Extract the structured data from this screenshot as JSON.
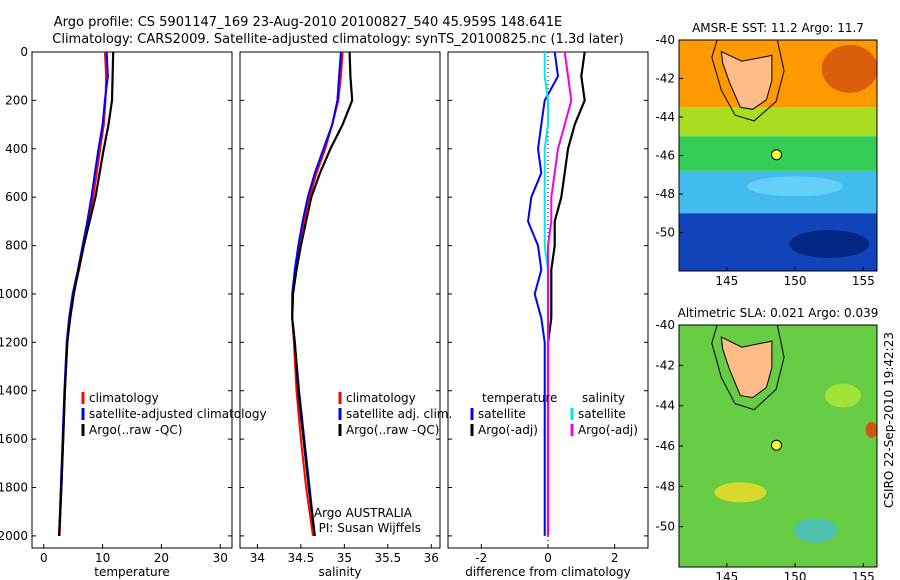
{
  "header": {
    "line1": "Argo profile: CS 5901147_169 23-Aug-2010 20100827_540 45.959S 148.641E",
    "line2": "Climatology: CARS2009. Satellite-adjusted climatology: synTS_20100825.nc (1.3d later)"
  },
  "side_stamp": "CSIRO 22-Sep-2010 19:42:23",
  "colors": {
    "climatology": "#ff0000",
    "satellite": "#0000ff",
    "argo": "#000000",
    "sal_satellite": "#00e5ee",
    "sal_argo": "#ee00ee",
    "land": "#ffbb88",
    "argo_marker": "#ffff33"
  },
  "chart_data": [
    {
      "type": "line",
      "xlabel": "temperature",
      "ylim": [
        2050,
        0
      ],
      "xlim": [
        -2,
        32
      ],
      "xticks": [
        0,
        10,
        20,
        30
      ],
      "xtick_labels": [
        "0",
        "10",
        "20",
        "30"
      ],
      "yticks": [
        0,
        200,
        400,
        600,
        800,
        1000,
        1200,
        1400,
        1600,
        1800,
        2000
      ],
      "ytick_labels": [
        "0",
        "200",
        "400",
        "600",
        "800",
        "1000",
        "1200",
        "1400",
        "1600",
        "1800",
        "2000"
      ],
      "legend": {
        "position": "lower-right",
        "entries": [
          "climatology",
          "satellite-adjusted climatology",
          "Argo(..raw -QC)"
        ]
      },
      "series": [
        {
          "name": "climatology",
          "color": "#ff0000",
          "points": [
            [
              10.4,
              0
            ],
            [
              10.6,
              100
            ],
            [
              10.5,
              200
            ],
            [
              10.2,
              300
            ],
            [
              9.6,
              400
            ],
            [
              9.0,
              500
            ],
            [
              8.4,
              600
            ],
            [
              7.6,
              700
            ],
            [
              6.8,
              800
            ],
            [
              6.0,
              900
            ],
            [
              5.0,
              1000
            ],
            [
              4.4,
              1100
            ],
            [
              4.0,
              1200
            ],
            [
              3.6,
              1400
            ],
            [
              3.3,
              1600
            ],
            [
              3.0,
              1800
            ],
            [
              2.7,
              2000
            ]
          ]
        },
        {
          "name": "satellite-adjusted climatology",
          "color": "#0000ff",
          "points": [
            [
              10.7,
              0
            ],
            [
              10.9,
              100
            ],
            [
              10.4,
              200
            ],
            [
              10.0,
              300
            ],
            [
              9.3,
              400
            ],
            [
              8.7,
              500
            ],
            [
              8.1,
              600
            ],
            [
              7.4,
              700
            ],
            [
              6.6,
              800
            ],
            [
              5.8,
              900
            ],
            [
              4.9,
              1000
            ],
            [
              4.3,
              1100
            ],
            [
              3.9,
              1200
            ],
            [
              3.5,
              1400
            ],
            [
              3.2,
              1600
            ],
            [
              2.9,
              1800
            ],
            [
              2.6,
              2000
            ]
          ]
        },
        {
          "name": "Argo(..raw -QC)",
          "color": "#000000",
          "points": [
            [
              11.8,
              0
            ],
            [
              11.7,
              100
            ],
            [
              11.6,
              200
            ],
            [
              11.0,
              300
            ],
            [
              10.2,
              400
            ],
            [
              9.5,
              500
            ],
            [
              8.8,
              600
            ],
            [
              7.8,
              700
            ],
            [
              6.8,
              800
            ],
            [
              5.9,
              900
            ],
            [
              5.1,
              1000
            ],
            [
              4.5,
              1100
            ],
            [
              4.0,
              1200
            ],
            [
              3.6,
              1400
            ],
            [
              3.3,
              1600
            ],
            [
              3.0,
              1800
            ],
            [
              2.6,
              2000
            ]
          ]
        }
      ]
    },
    {
      "type": "line",
      "xlabel": "salinity",
      "ylim": [
        2050,
        0
      ],
      "xlim": [
        33.8,
        36.1
      ],
      "xticks": [
        34,
        34.5,
        35,
        35.5,
        36
      ],
      "xtick_labels": [
        "34",
        "34.5",
        "35",
        "35.5",
        "36"
      ],
      "legend": {
        "position": "lower-right",
        "entries": [
          "climatology",
          "satellite adj. clim.",
          "Argo(..raw -QC)"
        ]
      },
      "annotation": [
        "Argo AUSTRALIA",
        "PI: Susan Wijffels"
      ],
      "series": [
        {
          "name": "climatology",
          "color": "#ff0000",
          "points": [
            [
              34.98,
              0
            ],
            [
              34.96,
              100
            ],
            [
              34.93,
              200
            ],
            [
              34.86,
              300
            ],
            [
              34.78,
              400
            ],
            [
              34.68,
              500
            ],
            [
              34.6,
              600
            ],
            [
              34.54,
              700
            ],
            [
              34.49,
              800
            ],
            [
              34.44,
              900
            ],
            [
              34.41,
              1000
            ],
            [
              34.4,
              1100
            ],
            [
              34.42,
              1200
            ],
            [
              34.45,
              1400
            ],
            [
              34.5,
              1600
            ],
            [
              34.56,
              1800
            ],
            [
              34.64,
              2000
            ]
          ]
        },
        {
          "name": "satellite adj. clim.",
          "color": "#0000ff",
          "points": [
            [
              34.96,
              0
            ],
            [
              34.94,
              100
            ],
            [
              34.92,
              200
            ],
            [
              34.86,
              300
            ],
            [
              34.76,
              400
            ],
            [
              34.66,
              500
            ],
            [
              34.58,
              600
            ],
            [
              34.52,
              700
            ],
            [
              34.47,
              800
            ],
            [
              34.43,
              900
            ],
            [
              34.4,
              1000
            ],
            [
              34.4,
              1100
            ],
            [
              34.43,
              1200
            ],
            [
              34.48,
              1400
            ],
            [
              34.54,
              1600
            ],
            [
              34.6,
              1800
            ],
            [
              34.66,
              2000
            ]
          ]
        },
        {
          "name": "Argo(..raw -QC)",
          "color": "#000000",
          "points": [
            [
              35.06,
              0
            ],
            [
              35.07,
              100
            ],
            [
              35.09,
              200
            ],
            [
              34.98,
              300
            ],
            [
              34.84,
              400
            ],
            [
              34.72,
              500
            ],
            [
              34.62,
              600
            ],
            [
              34.56,
              700
            ],
            [
              34.5,
              800
            ],
            [
              34.45,
              900
            ],
            [
              34.41,
              1000
            ],
            [
              34.4,
              1100
            ],
            [
              34.43,
              1200
            ],
            [
              34.47,
              1400
            ],
            [
              34.53,
              1600
            ],
            [
              34.59,
              1800
            ],
            [
              34.66,
              2000
            ]
          ]
        }
      ]
    },
    {
      "type": "line",
      "xlabel": "difference from climatology",
      "ylim": [
        2050,
        0
      ],
      "xlim": [
        -3,
        3
      ],
      "xticks": [
        -2,
        0,
        2
      ],
      "xtick_labels": [
        "-2",
        "0",
        "2"
      ],
      "zero_line": true,
      "legend_groups": [
        {
          "title": "temperature",
          "entries": [
            "satellite",
            "Argo(-adj)"
          ]
        },
        {
          "title": "salinity",
          "entries": [
            "satellite",
            "Argo(-adj)"
          ]
        }
      ],
      "series": [
        {
          "name": "satellite",
          "group": "temperature",
          "color": "#0000ff",
          "points": [
            [
              0.2,
              0
            ],
            [
              0.3,
              100
            ],
            [
              -0.1,
              200
            ],
            [
              -0.2,
              300
            ],
            [
              -0.3,
              400
            ],
            [
              -0.2,
              500
            ],
            [
              -0.5,
              600
            ],
            [
              -0.6,
              700
            ],
            [
              -0.3,
              800
            ],
            [
              -0.2,
              900
            ],
            [
              -0.4,
              1000
            ],
            [
              -0.2,
              1100
            ],
            [
              -0.1,
              1200
            ],
            [
              -0.1,
              1400
            ],
            [
              -0.1,
              1600
            ],
            [
              -0.1,
              1800
            ],
            [
              -0.1,
              2000
            ]
          ]
        },
        {
          "name": "Argo(-adj)",
          "group": "temperature",
          "color": "#000000",
          "points": [
            [
              1.1,
              0
            ],
            [
              1.0,
              100
            ],
            [
              1.1,
              200
            ],
            [
              0.8,
              300
            ],
            [
              0.6,
              400
            ],
            [
              0.5,
              500
            ],
            [
              0.4,
              600
            ],
            [
              0.2,
              700
            ],
            [
              0.2,
              800
            ],
            [
              0.1,
              900
            ],
            [
              0.1,
              1000
            ],
            [
              0.1,
              1100
            ],
            [
              0.0,
              1200
            ],
            [
              0.0,
              1400
            ],
            [
              0.0,
              1600
            ],
            [
              0.0,
              1800
            ],
            [
              0.0,
              2000
            ]
          ]
        },
        {
          "name": "satellite",
          "group": "salinity",
          "color": "#00e5ee",
          "points": [
            [
              -0.1,
              0
            ],
            [
              -0.1,
              100
            ],
            [
              0.0,
              200
            ],
            [
              0.0,
              300
            ],
            [
              -0.1,
              400
            ],
            [
              -0.1,
              500
            ],
            [
              -0.1,
              600
            ],
            [
              -0.1,
              700
            ],
            [
              -0.1,
              800
            ],
            [
              0.0,
              900
            ],
            [
              0.0,
              1000
            ],
            [
              0.0,
              1100
            ],
            [
              0.0,
              1200
            ],
            [
              0.0,
              1400
            ],
            [
              0.0,
              1600
            ],
            [
              0.0,
              1800
            ],
            [
              0.0,
              2000
            ]
          ]
        },
        {
          "name": "Argo(-adj)",
          "group": "salinity",
          "color": "#ee00ee",
          "points": [
            [
              0.5,
              0
            ],
            [
              0.6,
              100
            ],
            [
              0.7,
              200
            ],
            [
              0.5,
              300
            ],
            [
              0.3,
              400
            ],
            [
              0.2,
              500
            ],
            [
              0.1,
              600
            ],
            [
              0.1,
              700
            ],
            [
              0.0,
              800
            ],
            [
              0.0,
              900
            ],
            [
              0.0,
              1000
            ],
            [
              0.0,
              1100
            ],
            [
              0.0,
              1200
            ],
            [
              0.0,
              1400
            ],
            [
              0.0,
              1600
            ],
            [
              0.0,
              1800
            ],
            [
              0.0,
              2000
            ]
          ]
        }
      ]
    },
    {
      "type": "heatmap",
      "title": "AMSR-E SST: 11.2  Argo: 11.7",
      "xlim": [
        141.5,
        156
      ],
      "ylim": [
        -52,
        -40
      ],
      "xticks": [
        145,
        150,
        155
      ],
      "xtick_labels": [
        "145",
        "150",
        "155"
      ],
      "yticks": [
        -40,
        -42,
        -44,
        -46,
        -48,
        -50
      ],
      "ytick_labels": [
        "-40",
        "-42",
        "-44",
        "-46",
        "-48",
        "-50"
      ],
      "argo_point": [
        148.64,
        -45.96
      ],
      "bands": [
        {
          "from_lat": -40,
          "to_lat": -43.5,
          "color": "#ff9900"
        },
        {
          "from_lat": -43.5,
          "to_lat": -45,
          "color": "#aadd22"
        },
        {
          "from_lat": -45,
          "to_lat": -46.8,
          "color": "#33cc55"
        },
        {
          "from_lat": -46.8,
          "to_lat": -49,
          "color": "#44bbee"
        },
        {
          "from_lat": -49,
          "to_lat": -52,
          "color": "#1144bb"
        }
      ]
    },
    {
      "type": "heatmap",
      "title": "Altimetric SLA: 0.021  Argo: 0.039",
      "xlim": [
        141.5,
        156
      ],
      "ylim": [
        -52,
        -40
      ],
      "xticks": [
        145,
        150,
        155
      ],
      "xtick_labels": [
        "145",
        "150",
        "155"
      ],
      "yticks": [
        -40,
        -42,
        -44,
        -46,
        -48,
        -50
      ],
      "ytick_labels": [
        "-40",
        "-42",
        "-44",
        "-46",
        "-48",
        "-50"
      ],
      "argo_point": [
        148.64,
        -45.96
      ],
      "bands": [
        {
          "from_lat": -40,
          "to_lat": -52,
          "color": "#66cc44"
        }
      ]
    }
  ]
}
